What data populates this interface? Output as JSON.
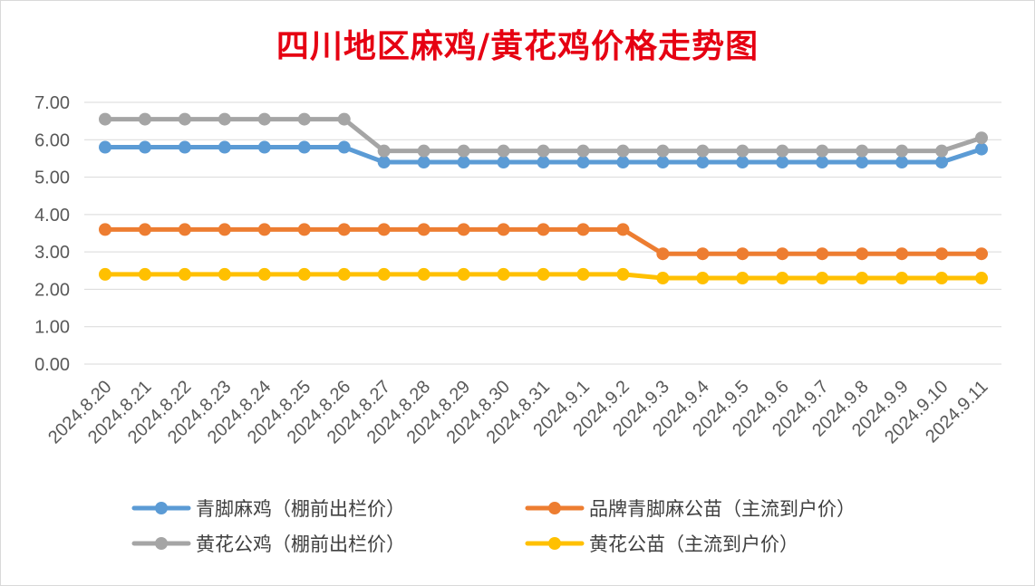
{
  "chart_data": {
    "type": "line",
    "title": "四川地区麻鸡/黄花鸡价格走势图",
    "categories": [
      "2024.8.20",
      "2024.8.21",
      "2024.8.22",
      "2024.8.23",
      "2024.8.24",
      "2024.8.25",
      "2024.8.26",
      "2024.8.27",
      "2024.8.28",
      "2024.8.29",
      "2024.8.30",
      "2024.8.31",
      "2024.9.1",
      "2024.9.2",
      "2024.9.3",
      "2024.9.4",
      "2024.9.5",
      "2024.9.6",
      "2024.9.7",
      "2024.9.8",
      "2024.9.9",
      "2024.9.10",
      "2024.9.11"
    ],
    "yticks": [
      "0.00",
      "1.00",
      "2.00",
      "3.00",
      "4.00",
      "5.00",
      "6.00",
      "7.00"
    ],
    "ylim": [
      0,
      7
    ],
    "grid": true,
    "legend_position": "bottom",
    "series": [
      {
        "name": "青脚麻鸡（棚前出栏价）",
        "color": "#5b9bd5",
        "values": [
          5.8,
          5.8,
          5.8,
          5.8,
          5.8,
          5.8,
          5.8,
          5.4,
          5.4,
          5.4,
          5.4,
          5.4,
          5.4,
          5.4,
          5.4,
          5.4,
          5.4,
          5.4,
          5.4,
          5.4,
          5.4,
          5.4,
          5.75
        ]
      },
      {
        "name": "品牌青脚麻公苗（主流到户价）",
        "color": "#ed7d31",
        "values": [
          3.6,
          3.6,
          3.6,
          3.6,
          3.6,
          3.6,
          3.6,
          3.6,
          3.6,
          3.6,
          3.6,
          3.6,
          3.6,
          3.6,
          2.95,
          2.95,
          2.95,
          2.95,
          2.95,
          2.95,
          2.95,
          2.95,
          2.95
        ]
      },
      {
        "name": "黄花公鸡（棚前出栏价）",
        "color": "#a5a5a5",
        "values": [
          6.55,
          6.55,
          6.55,
          6.55,
          6.55,
          6.55,
          6.55,
          5.7,
          5.7,
          5.7,
          5.7,
          5.7,
          5.7,
          5.7,
          5.7,
          5.7,
          5.7,
          5.7,
          5.7,
          5.7,
          5.7,
          5.7,
          6.05
        ]
      },
      {
        "name": "黄花公苗（主流到户价）",
        "color": "#ffc000",
        "values": [
          2.4,
          2.4,
          2.4,
          2.4,
          2.4,
          2.4,
          2.4,
          2.4,
          2.4,
          2.4,
          2.4,
          2.4,
          2.4,
          2.4,
          2.3,
          2.3,
          2.3,
          2.3,
          2.3,
          2.3,
          2.3,
          2.3,
          2.3
        ]
      }
    ]
  }
}
